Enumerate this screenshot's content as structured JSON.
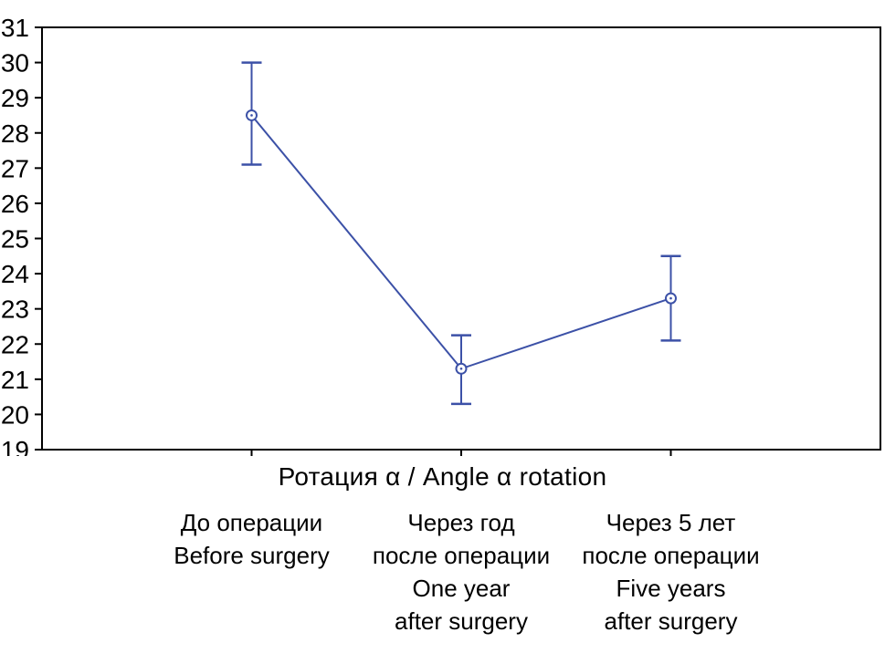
{
  "chart_data": {
    "type": "line",
    "title": "",
    "xlabel": "Ротация α / Angle α rotation",
    "ylabel": "",
    "ylim": [
      19,
      31
    ],
    "ytick_step": 1,
    "grid": false,
    "legend": "none",
    "line_color": "#3c51a7",
    "frame_color": "#000000",
    "marker": "open-circle",
    "categories": [
      [
        "До операции",
        "Before surgery"
      ],
      [
        "Через год",
        "после операции",
        "One year",
        "after surgery"
      ],
      [
        "Через 5 лет",
        "после операции",
        "Five years",
        "after surgery"
      ]
    ],
    "series": [
      {
        "name": "Ротация α / Angle α rotation",
        "values": [
          28.5,
          21.3,
          23.3
        ],
        "error_upper": [
          30.0,
          22.25,
          24.5
        ],
        "error_lower": [
          27.1,
          20.3,
          22.1
        ]
      }
    ]
  }
}
